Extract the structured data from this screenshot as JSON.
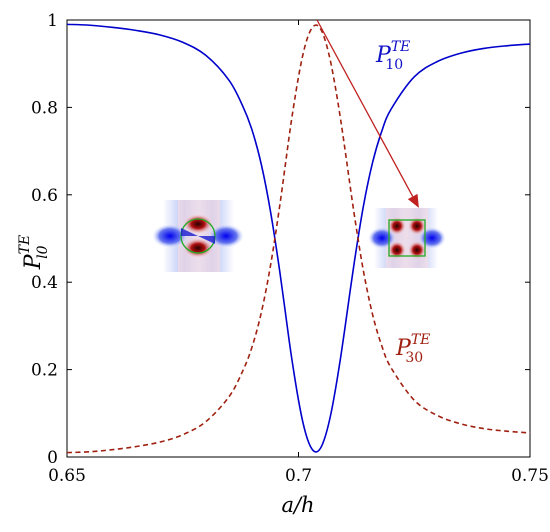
{
  "chart_data": {
    "type": "line",
    "title": "",
    "xlabel": "a/h",
    "ylabel": {
      "base": "P",
      "sub": "l0",
      "sup": "TE"
    },
    "xlim": [
      0.65,
      0.75
    ],
    "ylim": [
      0,
      1
    ],
    "grid": false,
    "x_ticks": [
      {
        "value": 0.65,
        "label": "0.65"
      },
      {
        "value": 0.7,
        "label": "0.7"
      },
      {
        "value": 0.75,
        "label": "0.75"
      }
    ],
    "y_ticks": [
      {
        "value": 0,
        "label": "0"
      },
      {
        "value": 0.2,
        "label": "0.2"
      },
      {
        "value": 0.4,
        "label": "0.4"
      },
      {
        "value": 0.6,
        "label": "0.6"
      },
      {
        "value": 0.8,
        "label": "0.8"
      },
      {
        "value": 1,
        "label": "1"
      }
    ],
    "series": [
      {
        "name": "P_10^TE",
        "label": {
          "base": "P",
          "sub": "10",
          "sup": "TE"
        },
        "color": "#0000cc",
        "style": "solid",
        "x": [
          0.65,
          0.655,
          0.66,
          0.665,
          0.67,
          0.675,
          0.68,
          0.685,
          0.688,
          0.69,
          0.692,
          0.694,
          0.696,
          0.698,
          0.699,
          0.7,
          0.701,
          0.702,
          0.703,
          0.704,
          0.705,
          0.706,
          0.707,
          0.708,
          0.709,
          0.71,
          0.712,
          0.714,
          0.716,
          0.718,
          0.72,
          0.725,
          0.73,
          0.735,
          0.74,
          0.745,
          0.75
        ],
        "y": [
          0.99,
          0.988,
          0.983,
          0.976,
          0.966,
          0.949,
          0.919,
          0.862,
          0.802,
          0.747,
          0.668,
          0.559,
          0.421,
          0.265,
          0.194,
          0.13,
          0.077,
          0.039,
          0.017,
          0.012,
          0.025,
          0.055,
          0.099,
          0.156,
          0.221,
          0.293,
          0.442,
          0.573,
          0.674,
          0.746,
          0.796,
          0.87,
          0.905,
          0.924,
          0.935,
          0.941,
          0.945
        ]
      },
      {
        "name": "P_30^TE",
        "label": {
          "base": "P",
          "sub": "30",
          "sup": "TE"
        },
        "color": "#a02010",
        "style": "dashed",
        "x": [
          0.65,
          0.655,
          0.66,
          0.665,
          0.67,
          0.675,
          0.68,
          0.685,
          0.688,
          0.69,
          0.692,
          0.694,
          0.696,
          0.698,
          0.699,
          0.7,
          0.701,
          0.702,
          0.703,
          0.704,
          0.705,
          0.706,
          0.707,
          0.708,
          0.709,
          0.71,
          0.712,
          0.714,
          0.716,
          0.718,
          0.72,
          0.725,
          0.73,
          0.735,
          0.74,
          0.745,
          0.75
        ],
        "y": [
          0.01,
          0.012,
          0.017,
          0.024,
          0.034,
          0.051,
          0.081,
          0.138,
          0.198,
          0.253,
          0.332,
          0.441,
          0.579,
          0.735,
          0.806,
          0.87,
          0.923,
          0.961,
          0.983,
          0.988,
          0.975,
          0.945,
          0.901,
          0.844,
          0.779,
          0.707,
          0.558,
          0.427,
          0.326,
          0.254,
          0.204,
          0.13,
          0.095,
          0.076,
          0.065,
          0.059,
          0.055
        ]
      }
    ],
    "annotations": [
      {
        "type": "arrow",
        "color": "#c02020",
        "from": [
          0.704,
          1.0
        ],
        "to": [
          0.726,
          0.57
        ]
      },
      {
        "type": "field-map-inset",
        "near_x": 0.68,
        "near_y": 0.49
      },
      {
        "type": "field-map-inset",
        "near_x": 0.725,
        "near_y": 0.47
      }
    ]
  }
}
